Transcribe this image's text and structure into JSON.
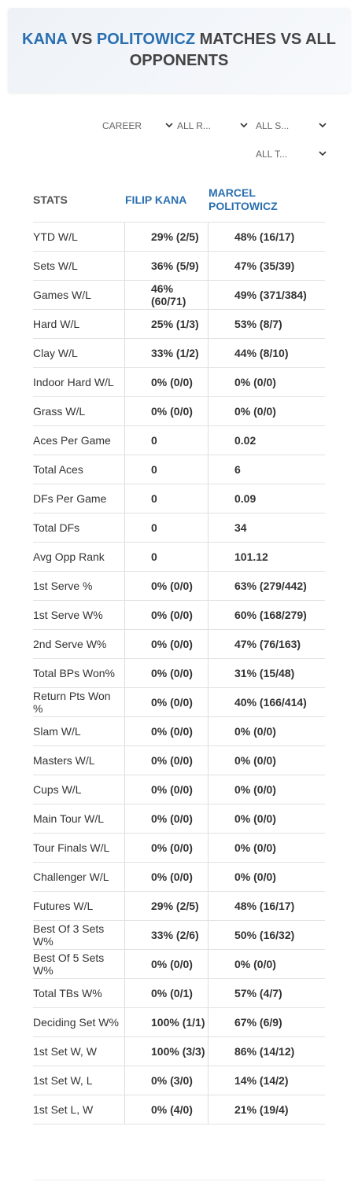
{
  "header": {
    "title_parts": [
      "KANA",
      " VS ",
      "POLITOWICZ",
      " MATCHES VS ALL OPPONENTS"
    ]
  },
  "filters": [
    "CAREER",
    "ALL R...",
    "ALL S...",
    "ALL T..."
  ],
  "table": {
    "headers": [
      "STATS",
      "FILIP KANA",
      "MARCEL POLITOWICZ"
    ],
    "rows": [
      [
        "YTD W/L",
        "29% (2/5)",
        "48% (16/17)"
      ],
      [
        "Sets W/L",
        "36% (5/9)",
        "47% (35/39)"
      ],
      [
        "Games W/L",
        "46% (60/71)",
        "49% (371/384)"
      ],
      [
        "Hard W/L",
        "25% (1/3)",
        "53% (8/7)"
      ],
      [
        "Clay W/L",
        "33% (1/2)",
        "44% (8/10)"
      ],
      [
        "Indoor Hard W/L",
        "0% (0/0)",
        "0% (0/0)"
      ],
      [
        "Grass W/L",
        "0% (0/0)",
        "0% (0/0)"
      ],
      [
        "Aces Per Game",
        "0",
        "0.02"
      ],
      [
        "Total Aces",
        "0",
        "6"
      ],
      [
        "DFs Per Game",
        "0",
        "0.09"
      ],
      [
        "Total DFs",
        "0",
        "34"
      ],
      [
        "Avg Opp Rank",
        "0",
        "101.12"
      ],
      [
        "1st Serve %",
        "0% (0/0)",
        "63% (279/442)"
      ],
      [
        "1st Serve W%",
        "0% (0/0)",
        "60% (168/279)"
      ],
      [
        "2nd Serve W%",
        "0% (0/0)",
        "47% (76/163)"
      ],
      [
        "Total BPs Won%",
        "0% (0/0)",
        "31% (15/48)"
      ],
      [
        "Return Pts Won %",
        "0% (0/0)",
        "40% (166/414)"
      ],
      [
        "Slam W/L",
        "0% (0/0)",
        "0% (0/0)"
      ],
      [
        "Masters W/L",
        "0% (0/0)",
        "0% (0/0)"
      ],
      [
        "Cups W/L",
        "0% (0/0)",
        "0% (0/0)"
      ],
      [
        "Main Tour W/L",
        "0% (0/0)",
        "0% (0/0)"
      ],
      [
        "Tour Finals W/L",
        "0% (0/0)",
        "0% (0/0)"
      ],
      [
        "Challenger W/L",
        "0% (0/0)",
        "0% (0/0)"
      ],
      [
        "Futures W/L",
        "29% (2/5)",
        "48% (16/17)"
      ],
      [
        "Best Of 3 Sets W%",
        "33% (2/6)",
        "50% (16/32)"
      ],
      [
        "Best Of 5 Sets W%",
        "0% (0/0)",
        "0% (0/0)"
      ],
      [
        "Total TBs W%",
        "0% (0/1)",
        "57% (4/7)"
      ],
      [
        "Deciding Set W%",
        "100% (1/1)",
        "67% (6/9)"
      ],
      [
        "1st Set W, W",
        "100% (3/3)",
        "86% (14/12)"
      ],
      [
        "1st Set W, L",
        "0% (3/0)",
        "14% (14/2)"
      ],
      [
        "1st Set L, W",
        "0% (4/0)",
        "21% (19/4)"
      ]
    ]
  }
}
